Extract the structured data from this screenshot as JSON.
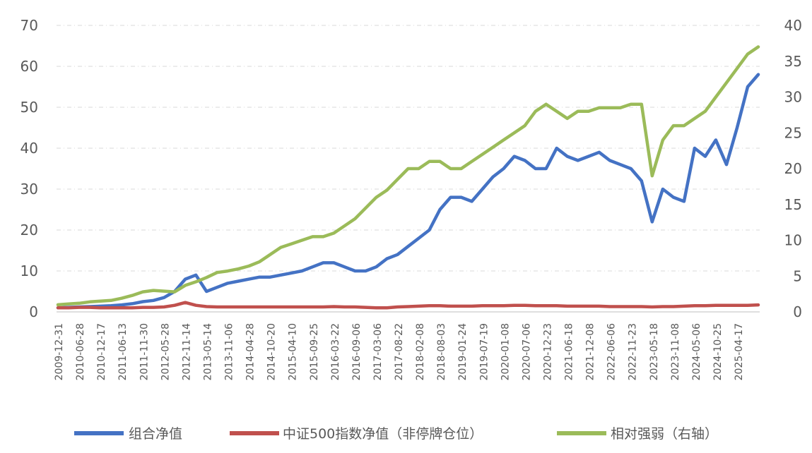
{
  "chart_data": {
    "type": "line",
    "title": "",
    "xlabel": "",
    "ylabel": "",
    "y_left_lim": [
      0,
      70
    ],
    "y_right_lim": [
      0,
      40
    ],
    "y_left_ticks": [
      "0",
      "10",
      "20",
      "30",
      "40",
      "50",
      "60",
      "70"
    ],
    "y_right_ticks": [
      "0",
      "5",
      "10",
      "15",
      "20",
      "25",
      "30",
      "35",
      "40"
    ],
    "grid": "horizontal dashed",
    "legend_position": "bottom",
    "x_tick_labels": [
      "2009-12-31",
      "2010-06-28",
      "2010-12-17",
      "2011-06-13",
      "2011-11-30",
      "2012-05-28",
      "2012-11-14",
      "2013-05-14",
      "2013-11-06",
      "2014-04-28",
      "2014-10-20",
      "2015-04-10",
      "2015-09-25",
      "2016-03-22",
      "2016-09-06",
      "2017-03-06",
      "2017-08-22",
      "2018-02-08",
      "2018-08-03",
      "2019-01-24",
      "2019-07-19",
      "2020-01-08",
      "2020-07-06",
      "2020-12-23",
      "2021-06-18",
      "2021-12-08",
      "2022-06-06",
      "2022-11-23",
      "2023-05-18",
      "2023-11-08",
      "2024-05-06",
      "2024-10-25",
      "2025-04-17"
    ],
    "series": [
      {
        "name": "组合净值",
        "axis": "left",
        "color": "#4472C4",
        "values": [
          1,
          1.1,
          1.2,
          1.3,
          1.4,
          1.5,
          1.7,
          2,
          2.5,
          2.8,
          3.5,
          5,
          8,
          9,
          5,
          6,
          7,
          7.5,
          8,
          8.5,
          8.5,
          9,
          9.5,
          10,
          11,
          12,
          12,
          11,
          10,
          10,
          11,
          13,
          14,
          16,
          18,
          20,
          25,
          28,
          28,
          27,
          30,
          33,
          35,
          38,
          37,
          35,
          35,
          40,
          38,
          37,
          38,
          39,
          37,
          36,
          35,
          32,
          22,
          30,
          28,
          27,
          40,
          38,
          42,
          36,
          45,
          55,
          58
        ]
      },
      {
        "name": "中证500指数净值（非停牌仓位）",
        "axis": "left",
        "color": "#C0504D",
        "values": [
          1,
          1,
          1.1,
          1.1,
          1,
          1,
          1,
          1,
          1.1,
          1.1,
          1.2,
          1.6,
          2.3,
          1.6,
          1.3,
          1.2,
          1.2,
          1.2,
          1.2,
          1.2,
          1.2,
          1.2,
          1.2,
          1.2,
          1.2,
          1.2,
          1.3,
          1.2,
          1.2,
          1.1,
          1,
          1,
          1.2,
          1.3,
          1.4,
          1.5,
          1.5,
          1.4,
          1.4,
          1.4,
          1.5,
          1.5,
          1.5,
          1.6,
          1.6,
          1.5,
          1.5,
          1.5,
          1.4,
          1.4,
          1.4,
          1.4,
          1.3,
          1.3,
          1.3,
          1.3,
          1.2,
          1.3,
          1.3,
          1.4,
          1.5,
          1.5,
          1.6,
          1.6,
          1.6,
          1.6,
          1.7
        ]
      },
      {
        "name": "相对强弱（右轴）",
        "axis": "right",
        "color": "#9BBB59",
        "values": [
          1,
          1.1,
          1.2,
          1.4,
          1.5,
          1.6,
          1.9,
          2.3,
          2.8,
          3,
          2.9,
          2.8,
          3.7,
          4.2,
          4.8,
          5.5,
          5.7,
          6,
          6.4,
          7,
          8,
          9,
          9.5,
          10,
          10.5,
          10.5,
          11,
          12,
          13,
          14.5,
          16,
          17,
          18.5,
          20,
          20,
          21,
          21,
          20,
          20,
          21,
          22,
          23,
          24,
          25,
          26,
          28,
          29,
          28,
          27,
          28,
          28,
          28.5,
          28.5,
          28.5,
          29,
          29,
          19,
          24,
          26,
          26,
          27,
          28,
          30,
          32,
          34,
          36,
          37
        ]
      }
    ]
  },
  "legend": {
    "item1": "组合净值",
    "item2": "中证500指数净值（非停牌仓位）",
    "item3": "相对强弱（右轴）"
  }
}
